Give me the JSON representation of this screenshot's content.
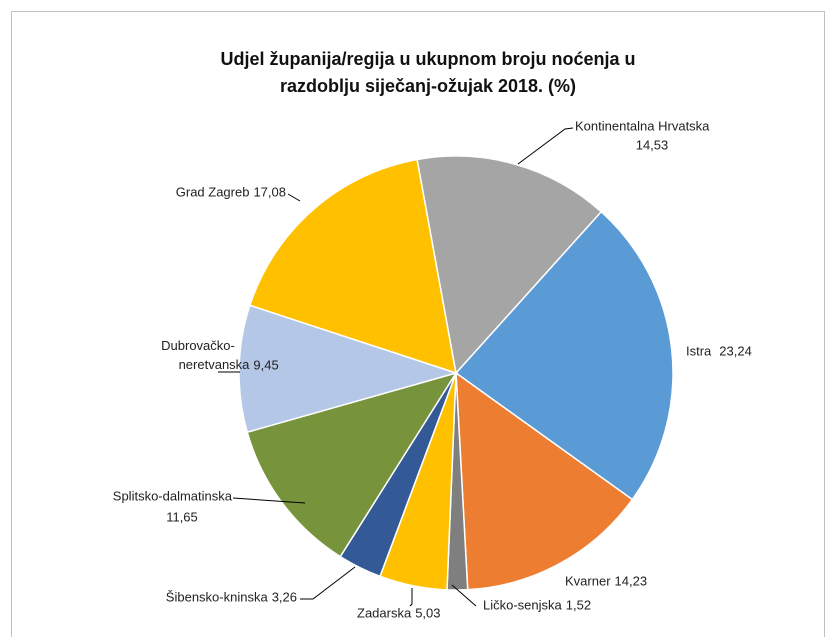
{
  "chart_data": {
    "type": "pie",
    "title": [
      "Udjel županija/regija u ukupnom broju noćenja u",
      "razdoblju siječanj-ožujak 2018. (%)"
    ],
    "categories": [
      "Istra",
      "Kvarner",
      "Ličko-senjska",
      "Zadarska",
      "Šibensko-kninska",
      "Splitsko-dalmatinska",
      "Dubrovačko-neretvanska",
      "Grad Zagreb",
      "Kontinentalna Hrvatska"
    ],
    "values": [
      23.24,
      14.23,
      1.52,
      5.03,
      3.26,
      11.65,
      9.45,
      17.08,
      14.53
    ],
    "value_labels": [
      "23,24",
      "14,23",
      "1,52",
      "5,03",
      "3,26",
      "11,65",
      "9,45",
      "17,08",
      "14,53"
    ],
    "colors": [
      "#5b9bd5",
      "#ed7d31",
      "#7f7f7f",
      "#ffc000",
      "#335a96",
      "#77933c",
      "#b4c7e7",
      "#ffc000",
      "#a5a5a5"
    ]
  }
}
